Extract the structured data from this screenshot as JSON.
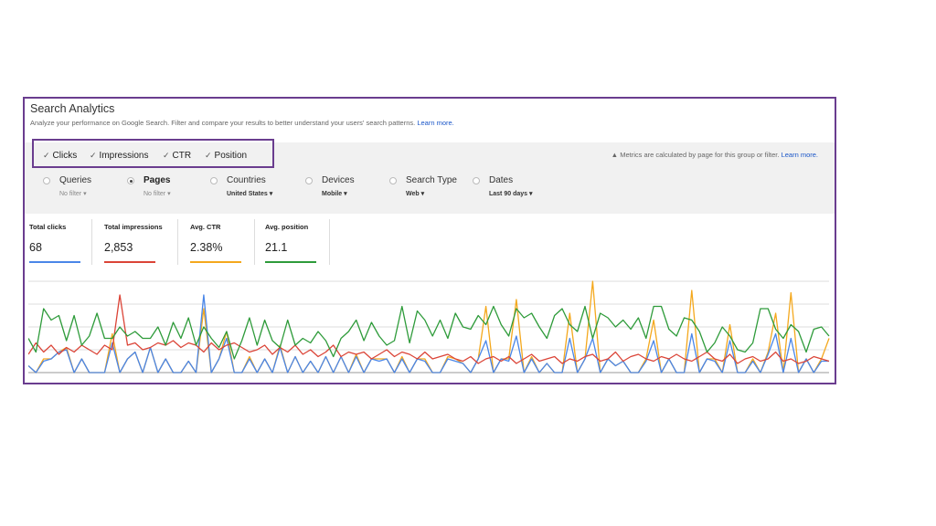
{
  "header": {
    "title": "Search Analytics",
    "subtitle": "Analyze your performance on Google Search. Filter and compare your results to better understand your users' search patterns.",
    "learn_more": "Learn more."
  },
  "metrics": [
    {
      "label": "Clicks",
      "checked": true
    },
    {
      "label": "Impressions",
      "checked": true
    },
    {
      "label": "CTR",
      "checked": true
    },
    {
      "label": "Position",
      "checked": true
    }
  ],
  "notice": {
    "icon": "warning-icon",
    "text": "Metrics are calculated by page for this group or filter.",
    "link": "Learn more."
  },
  "dimensions": [
    {
      "label": "Queries",
      "value": "No filter",
      "selected": false
    },
    {
      "label": "Pages",
      "value": "No filter",
      "selected": true
    },
    {
      "label": "Countries",
      "value": "United States",
      "selected": false
    },
    {
      "label": "Devices",
      "value": "Mobile",
      "selected": false
    },
    {
      "label": "Search Type",
      "value": "Web",
      "selected": false
    },
    {
      "label": "Dates",
      "value": "Last 90 days",
      "selected": false
    }
  ],
  "summary": [
    {
      "label": "Total clicks",
      "value": "68",
      "color": "#4a86e8"
    },
    {
      "label": "Total impressions",
      "value": "2,853",
      "color": "#db4437"
    },
    {
      "label": "Avg. CTR",
      "value": "2.38%",
      "color": "#f4a81d"
    },
    {
      "label": "Avg. position",
      "value": "21.1",
      "color": "#2e9b3a"
    }
  ],
  "chart_data": {
    "type": "line",
    "grid": true,
    "ylim": [
      0,
      4
    ],
    "series": [
      {
        "color": "#f4a81d",
        "values": [
          0.3,
          0,
          0.6,
          0.6,
          0.9,
          1.1,
          0,
          0.6,
          0,
          0,
          0,
          1.7,
          0,
          0.6,
          0.9,
          0,
          1.1,
          0,
          0.6,
          0,
          0,
          0.5,
          0,
          2.8,
          0,
          0.6,
          1.8,
          0,
          0,
          0.7,
          0,
          0.6,
          0,
          1.2,
          0,
          0.7,
          0,
          0.5,
          0,
          0.7,
          0,
          0.7,
          0,
          0.8,
          0,
          0.6,
          0.6,
          0.6,
          0,
          0.7,
          0,
          0.6,
          0.6,
          0,
          0,
          0.7,
          0.6,
          0.4,
          0,
          0.6,
          2.9,
          0,
          0.6,
          0.6,
          3.2,
          0,
          0.7,
          0,
          0.4,
          0,
          0,
          2.6,
          0,
          0.6,
          4.0,
          0,
          0.6,
          0.3,
          0.5,
          0,
          0,
          0.6,
          2.3,
          0,
          0.6,
          0,
          0,
          3.6,
          0,
          0.6,
          0.6,
          0,
          2.1,
          0,
          0,
          0.6,
          0,
          0.9,
          2.6,
          0,
          3.5,
          0,
          0.6,
          0,
          0.6,
          1.5
        ]
      },
      {
        "color": "#4a86e8",
        "values": [
          0.3,
          0,
          0.5,
          0.6,
          0.9,
          1.0,
          0,
          0.6,
          0,
          0,
          0,
          1.3,
          0,
          0.6,
          0.9,
          0,
          1.1,
          0,
          0.6,
          0,
          0,
          0.5,
          0,
          3.4,
          0,
          0.6,
          1.5,
          0,
          0,
          0.6,
          0,
          0.6,
          0,
          1.1,
          0,
          0.7,
          0,
          0.5,
          0,
          0.7,
          0,
          0.7,
          0,
          0.7,
          0,
          0.6,
          0.5,
          0.6,
          0,
          0.6,
          0,
          0.6,
          0.5,
          0,
          0,
          0.6,
          0.5,
          0.4,
          0,
          0.6,
          1.4,
          0,
          0.6,
          0.5,
          1.6,
          0,
          0.6,
          0,
          0.4,
          0,
          0,
          1.5,
          0,
          0.6,
          1.5,
          0,
          0.6,
          0.3,
          0.5,
          0,
          0,
          0.5,
          1.4,
          0,
          0.6,
          0,
          0,
          1.7,
          0,
          0.6,
          0.5,
          0,
          1.4,
          0,
          0,
          0.5,
          0,
          0.8,
          1.7,
          0,
          1.5,
          0,
          0.6,
          0,
          0.5,
          0.5
        ]
      },
      {
        "color": "#db4437",
        "values": [
          0.8,
          1.3,
          0.9,
          1.2,
          0.8,
          1.1,
          0.9,
          1.2,
          1.0,
          0.8,
          1.2,
          1.0,
          3.4,
          1.2,
          1.3,
          1.0,
          1.1,
          1.3,
          1.2,
          1.4,
          1.1,
          1.3,
          1.2,
          0.9,
          1.3,
          1.0,
          1.2,
          1.3,
          1.1,
          0.9,
          1.0,
          1.2,
          0.8,
          1.1,
          0.9,
          1.2,
          0.8,
          1.0,
          0.7,
          0.9,
          1.2,
          0.7,
          0.9,
          0.8,
          0.9,
          0.6,
          0.8,
          1.0,
          0.7,
          0.9,
          0.8,
          0.6,
          0.9,
          0.6,
          0.7,
          0.8,
          0.6,
          0.5,
          0.7,
          0.4,
          0.6,
          0.7,
          0.5,
          0.7,
          0.4,
          0.6,
          0.8,
          0.5,
          0.6,
          0.7,
          0.4,
          0.6,
          0.5,
          0.7,
          0.8,
          0.5,
          0.6,
          0.9,
          0.5,
          0.7,
          0.8,
          0.6,
          0.5,
          0.7,
          0.6,
          0.8,
          0.6,
          0.5,
          0.7,
          0.9,
          0.6,
          0.5,
          0.8,
          0.4,
          0.6,
          0.7,
          0.5,
          0.6,
          0.9,
          0.5,
          0.6,
          0.4,
          0.5,
          0.7,
          0.6,
          0.5
        ]
      },
      {
        "color": "#2e9b3a",
        "values": [
          1.5,
          0.9,
          2.8,
          2.3,
          2.5,
          1.4,
          2.5,
          1.2,
          1.6,
          2.6,
          1.5,
          1.5,
          2.0,
          1.6,
          1.8,
          1.5,
          1.5,
          2.0,
          1.2,
          2.2,
          1.5,
          2.4,
          1.2,
          2.0,
          1.5,
          1.1,
          1.8,
          0.6,
          1.4,
          2.4,
          1.2,
          2.3,
          1.4,
          1.1,
          2.3,
          1.2,
          1.5,
          1.3,
          1.8,
          1.4,
          0.7,
          1.5,
          1.8,
          2.3,
          1.4,
          2.2,
          1.6,
          1.2,
          1.4,
          2.9,
          1.3,
          2.7,
          2.3,
          1.6,
          2.3,
          1.5,
          2.6,
          2.0,
          1.9,
          2.5,
          2.1,
          2.9,
          2.1,
          1.6,
          2.8,
          2.4,
          2.6,
          2.0,
          1.5,
          2.5,
          2.8,
          2.1,
          1.8,
          2.9,
          1.5,
          2.6,
          2.4,
          2.0,
          2.3,
          1.9,
          2.4,
          1.5,
          2.9,
          2.9,
          1.9,
          1.6,
          2.4,
          2.3,
          1.8,
          0.9,
          1.3,
          2.0,
          1.6,
          1.0,
          0.9,
          1.3,
          2.8,
          2.8,
          1.9,
          1.5,
          2.1,
          1.8,
          0.9,
          1.9,
          2.0,
          1.6
        ]
      }
    ]
  }
}
